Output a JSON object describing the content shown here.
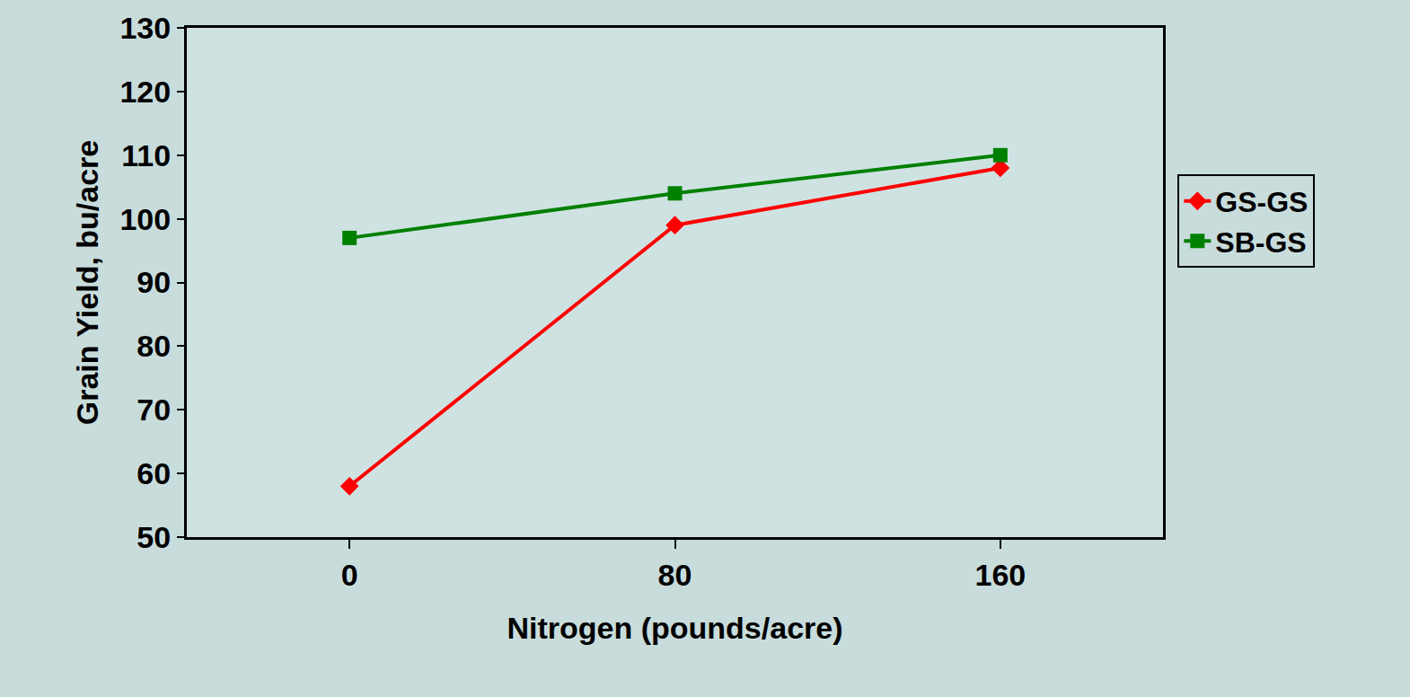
{
  "chart_data": {
    "type": "line",
    "x_label": "Nitrogen (pounds/acre)",
    "y_label": "Grain Yield, bu/acre",
    "x": [
      0,
      80,
      160
    ],
    "xlim": [
      -40,
      200
    ],
    "xticks": [
      0,
      80,
      160
    ],
    "ylim": [
      50,
      130
    ],
    "yticks": [
      50,
      60,
      70,
      80,
      90,
      100,
      110,
      120,
      130
    ],
    "grid": false,
    "legend": "right",
    "series": [
      {
        "name": "GS-GS",
        "color": "#ff0000",
        "marker": "diamond",
        "values": [
          58,
          99,
          108
        ]
      },
      {
        "name": "SB-GS",
        "color": "#008000",
        "marker": "square",
        "values": [
          97,
          104,
          110
        ]
      }
    ]
  }
}
